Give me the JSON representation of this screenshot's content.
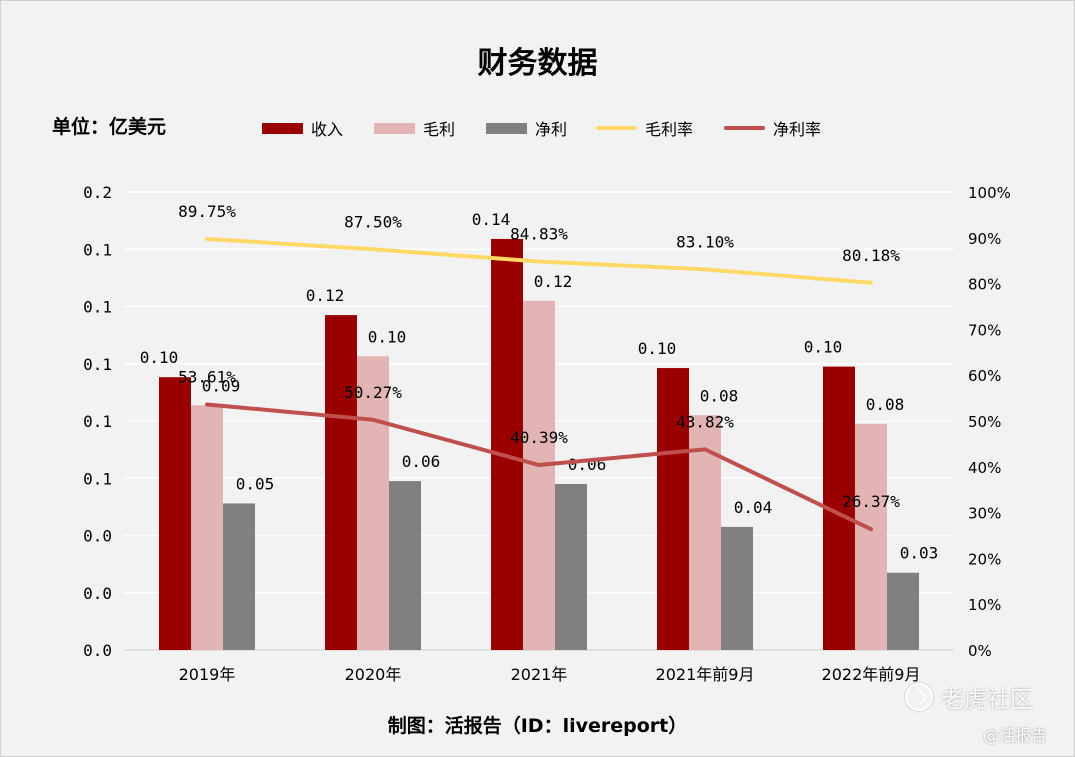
{
  "header": {
    "title": "财务数据",
    "unit": "单位：亿美元",
    "credit": "制图：活报告（ID：livereport）"
  },
  "watermark": {
    "brand": "老虎社区",
    "handle": "@活报告"
  },
  "colors": {
    "revenue": "#9b0000",
    "gross_profit": "#e2b4b4",
    "net_profit": "#808080",
    "gross_margin": "#ffd966",
    "net_margin": "#c0504d",
    "grid": "#ffffff",
    "background": "#f2f2f2"
  },
  "chart_data": {
    "type": "bar",
    "title": "财务数据",
    "categories": [
      "2019年",
      "2020年",
      "2021年",
      "2021年前9月",
      "2022年前9月"
    ],
    "left_axis": {
      "ylim": [
        0,
        0.16
      ],
      "ticks": [
        0,
        0.02,
        0.04,
        0.06,
        0.08,
        0.1,
        0.12,
        0.14,
        0.16
      ],
      "tick_labels": [
        "0.0",
        "0.0",
        "0.0",
        "0.1",
        "0.1",
        "0.1",
        "0.1",
        "0.1",
        "0.2"
      ]
    },
    "right_axis": {
      "ylim": [
        0,
        100
      ],
      "ticks": [
        0,
        10,
        20,
        30,
        40,
        50,
        60,
        70,
        80,
        90,
        100
      ],
      "tick_labels": [
        "0%",
        "10%",
        "20%",
        "30%",
        "40%",
        "50%",
        "60%",
        "70%",
        "80%",
        "90%",
        "100%"
      ]
    },
    "series": [
      {
        "name": "收入",
        "type": "bar",
        "axis": "left",
        "values": [
          0.0953,
          0.117,
          0.1436,
          0.0985,
          0.099
        ],
        "labels": [
          "0.10",
          "0.12",
          "0.14",
          "0.10",
          "0.10"
        ]
      },
      {
        "name": "毛利",
        "type": "bar",
        "axis": "left",
        "values": [
          0.0855,
          0.1026,
          0.122,
          0.082,
          0.079
        ],
        "labels": [
          "0.09",
          "0.10",
          "0.12",
          "0.08",
          "0.08"
        ]
      },
      {
        "name": "净利",
        "type": "bar",
        "axis": "left",
        "values": [
          0.0512,
          0.059,
          0.058,
          0.043,
          0.027
        ],
        "labels": [
          "0.05",
          "0.06",
          "0.06",
          "0.04",
          "0.03"
        ]
      },
      {
        "name": "毛利率",
        "type": "line",
        "axis": "right",
        "values": [
          89.75,
          87.5,
          84.83,
          83.1,
          80.18
        ],
        "labels": [
          "89.75%",
          "87.50%",
          "84.83%",
          "83.10%",
          "80.18%"
        ]
      },
      {
        "name": "净利率",
        "type": "line",
        "axis": "right",
        "values": [
          53.61,
          50.27,
          40.39,
          43.82,
          26.37
        ],
        "labels": [
          "53.61%",
          "50.27%",
          "40.39%",
          "43.82%",
          "26.37%"
        ]
      }
    ],
    "legend_position": "top",
    "grid": true
  }
}
